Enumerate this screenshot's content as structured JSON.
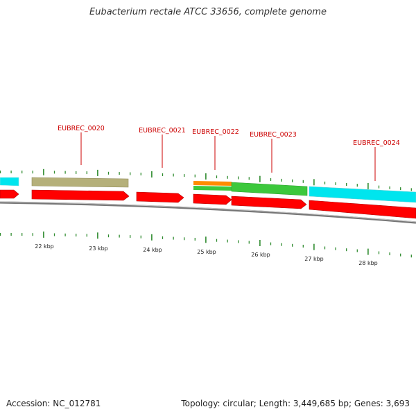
{
  "title": "Eubacterium rectale ATCC 33656, complete genome",
  "footer": {
    "accession": "Accession: NC_012781",
    "topology": "Topology: circular; Length: 3,449,685 bp; Genes: 3,693"
  },
  "colors": {
    "forward_cds": "#ff0000",
    "reverse_cds_cyan": "#00e5ee",
    "reverse_cds_khaki": "#b5b07a",
    "reverse_cds_green": "#3cc83c",
    "reverse_cds_orange": "#ff8c00",
    "label": "#cc0000",
    "tick": "#2e8b2e",
    "backbone": "#808080"
  },
  "gene_labels": [
    "EUBREC_0020",
    "EUBREC_0021",
    "EUBREC_0022",
    "EUBREC_0023",
    "EUBREC_0024"
  ],
  "scale_labels": [
    "22 kbp",
    "23 kbp",
    "24 kbp",
    "25 kbp",
    "26 kbp",
    "27 kbp",
    "28 kbp"
  ]
}
